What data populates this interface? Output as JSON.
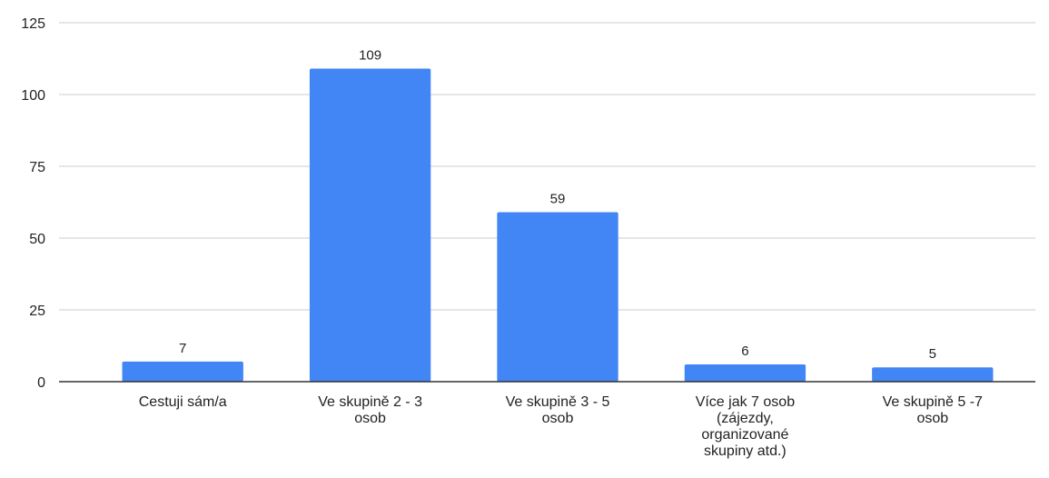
{
  "chart_data": {
    "type": "bar",
    "categories": [
      "Cestuji sám/a",
      "Ve skupině 2 - 3 osob",
      "Ve skupině 3 - 5 osob",
      "Více jak 7 osob (zájezdy, organizované skupiny atd.)",
      "Ve skupině 5 -7 osob"
    ],
    "values": [
      7,
      109,
      59,
      6,
      5
    ],
    "color": "#4285f4",
    "ylim": [
      0,
      125
    ],
    "yticks": [
      0,
      25,
      50,
      75,
      100,
      125
    ],
    "grid": true
  }
}
